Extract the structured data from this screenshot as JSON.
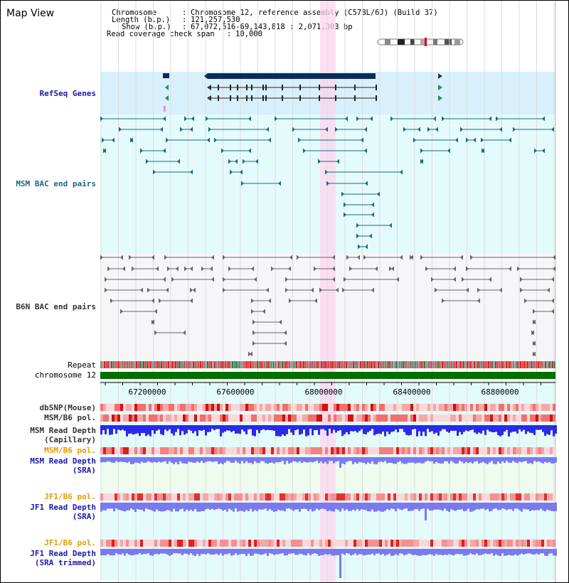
{
  "app": {
    "title": "Map View"
  },
  "header": {
    "chromosome_label": "Chromosome",
    "chromosome_value": "Chromosome 12, reference assembly (C57BL/6J) (Build 37)",
    "length_label": "Length (b.p.)",
    "length_value": "121,257,530",
    "show_label": "Show (b.p.)",
    "show_value": "67,072,516-69,143,818 : 2,071,303 bp",
    "read_cov_label": "Read coverage check span",
    "read_cov_value": "10,000"
  },
  "tracks": {
    "refseq": "RefSeq Genes",
    "msm_bac": "MSM BAC end pairs",
    "b6n_bac": "B6N BAC end pairs",
    "repeat": "Repeat",
    "chromosome": "chromosome 12",
    "dbsnp": "dbSNP(Mouse)",
    "msm_b6_pol": "MSM/B6 pol.",
    "msm_read_depth_cap": "MSM Read Depth\n(Capillary)",
    "msm_b6_pol2": "MSM/B6 pol.",
    "msm_read_depth_sra": "MSM Read Depth\n(SRA)",
    "jf1_b6_pol": "JF1/B6 pol.",
    "jf1_read_depth_sra": "JF1 Read Depth\n(SRA)",
    "jf1_b6_pol2": "JF1/B6 pol.",
    "jf1_read_depth_trim": "JF1 Read Depth\n(SRA trimmed)"
  },
  "axis": {
    "ticks": [
      "67200000",
      "67600000",
      "68000000",
      "68400000",
      "68800000"
    ]
  },
  "colors": {
    "refseq_bg": "#d8f0fb",
    "lane_bg": "#e4fbfb",
    "highlight": "#fbd6ee",
    "gene_dark": "#0a2a5a",
    "msm_feature": "#1a6a80",
    "b6n_feature": "#666666",
    "chromosome_bar": "#007000",
    "snp_red": "#e84040",
    "depth_blue": "#2a2ae8",
    "depth_light": "#7a7af0"
  }
}
